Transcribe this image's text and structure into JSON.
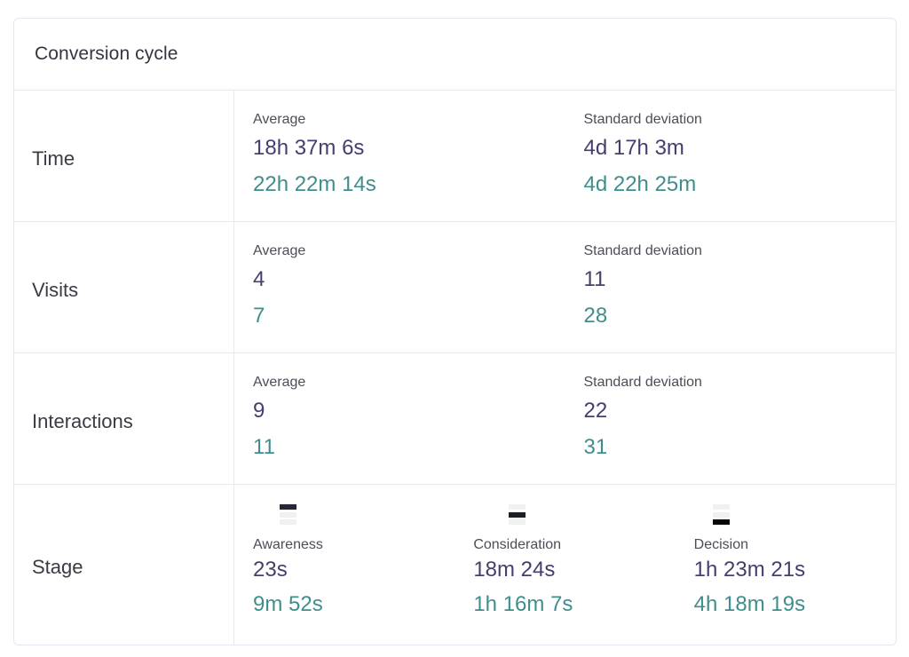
{
  "card": {
    "title": "Conversion cycle",
    "metric_rows": [
      {
        "label": "Time",
        "columns": [
          {
            "label": "Average",
            "primary": "18h 37m 6s",
            "secondary": "22h 22m 14s"
          },
          {
            "label": "Standard deviation",
            "primary": "4d 17h 3m",
            "secondary": "4d 22h 25m"
          }
        ]
      },
      {
        "label": "Visits",
        "columns": [
          {
            "label": "Average",
            "primary": "4",
            "secondary": "7"
          },
          {
            "label": "Standard deviation",
            "primary": "11",
            "secondary": "28"
          }
        ]
      },
      {
        "label": "Interactions",
        "columns": [
          {
            "label": "Average",
            "primary": "9",
            "secondary": "11"
          },
          {
            "label": "Standard deviation",
            "primary": "22",
            "secondary": "31"
          }
        ]
      }
    ],
    "stage_row": {
      "label": "Stage",
      "stages": [
        {
          "name": "Awareness",
          "icon": "funnel-stage-top-icon",
          "primary": "23s",
          "secondary": "9m 52s"
        },
        {
          "name": "Consideration",
          "icon": "funnel-stage-middle-icon",
          "primary": "18m 24s",
          "secondary": "1h 16m 7s"
        },
        {
          "name": "Decision",
          "icon": "funnel-stage-bottom-icon",
          "primary": "1h 23m 21s",
          "secondary": "4h 18m 19s"
        }
      ]
    },
    "colors": {
      "primary_value": "#453e6f",
      "secondary_value": "#3f8e8c",
      "label_text": "#4c4d57",
      "row_label_text": "#3a3b44",
      "card_border": "#e3e5f1",
      "divider": "#e9e9ea",
      "icon_bar_inactive": "#f1f1f2",
      "icon_bar_active": "#1c1e28"
    }
  }
}
